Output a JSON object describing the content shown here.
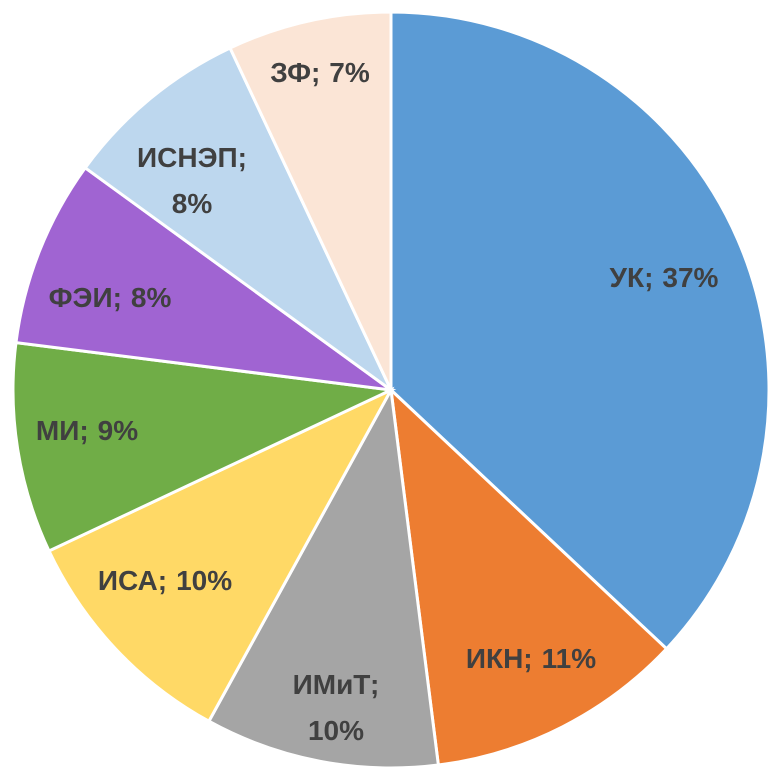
{
  "chart_data": {
    "type": "pie",
    "categories": [
      "УК",
      "ИКН",
      "ИМиТ",
      "ИСА",
      "МИ",
      "ФЭИ",
      "ИСНЭП",
      "ЗФ"
    ],
    "values": [
      37,
      11,
      10,
      10,
      9,
      8,
      8,
      7
    ],
    "value_labels": [
      "37%",
      "11%",
      "10%",
      "10%",
      "9%",
      "8%",
      "8%",
      "7%"
    ],
    "label_separator": ";",
    "colors": [
      "#5b9bd5",
      "#ed7d31",
      "#a5a5a5",
      "#ffd966",
      "#70ad47",
      "#a064d2",
      "#bdd7ee",
      "#fbe5d6"
    ]
  }
}
